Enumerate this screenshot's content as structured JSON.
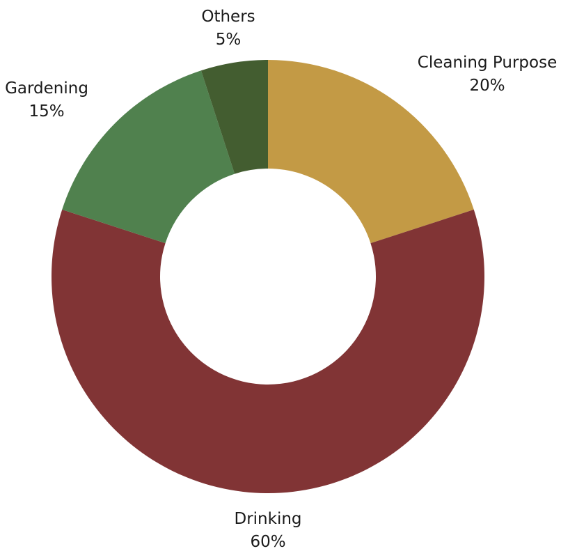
{
  "chart_data": {
    "type": "pie",
    "variant": "donut",
    "slices": [
      {
        "label": "Cleaning Purpose",
        "value": 20,
        "value_text": "20%",
        "color": "#C39A45"
      },
      {
        "label": "Drinking",
        "value": 60,
        "value_text": "60%",
        "color": "#813435"
      },
      {
        "label": "Gardening",
        "value": 15,
        "value_text": "15%",
        "color": "#50814E"
      },
      {
        "label": "Others",
        "value": 5,
        "value_text": "5%",
        "color": "#435D30"
      }
    ],
    "start_angle": "12 o'clock",
    "direction": "clockwise",
    "legend": "none"
  }
}
